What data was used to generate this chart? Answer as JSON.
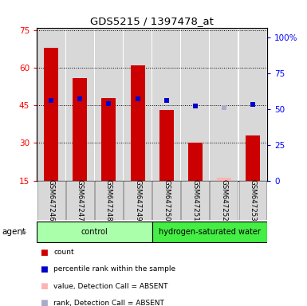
{
  "title": "GDS5215 / 1397478_at",
  "samples": [
    "GSM647246",
    "GSM647247",
    "GSM647248",
    "GSM647249",
    "GSM647250",
    "GSM647251",
    "GSM647252",
    "GSM647253"
  ],
  "bar_values": [
    68,
    56,
    48,
    61,
    43,
    30,
    null,
    33
  ],
  "bar_absent_values": [
    null,
    null,
    null,
    null,
    null,
    null,
    16,
    null
  ],
  "rank_values": [
    56,
    57,
    54,
    57,
    56,
    52,
    null,
    53
  ],
  "rank_absent_values": [
    null,
    null,
    null,
    null,
    null,
    null,
    51,
    null
  ],
  "left_yticks": [
    15,
    30,
    45,
    60,
    75
  ],
  "right_yticks": [
    0,
    25,
    50,
    75,
    100
  ],
  "left_ylim": [
    15,
    76
  ],
  "right_ylim": [
    0,
    107
  ],
  "bar_color": "#CC0000",
  "bar_absent_color": "#FFB3B3",
  "rank_color": "#0000CC",
  "rank_absent_color": "#AAAACC",
  "groups": [
    {
      "label": "control",
      "indices": [
        0,
        1,
        2,
        3
      ],
      "color": "#AAFFAA"
    },
    {
      "label": "hydrogen-saturated water",
      "indices": [
        4,
        5,
        6,
        7
      ],
      "color": "#44EE44"
    }
  ],
  "legend_items": [
    {
      "label": "count",
      "color": "#CC0000"
    },
    {
      "label": "percentile rank within the sample",
      "color": "#0000CC"
    },
    {
      "label": "value, Detection Call = ABSENT",
      "color": "#FFB3B3"
    },
    {
      "label": "rank, Detection Call = ABSENT",
      "color": "#AAAACC"
    }
  ],
  "xlabel_agent": "agent",
  "col_bg_color": "#D8D8D8",
  "plot_bg": "#FFFFFF",
  "bar_width": 0.5
}
